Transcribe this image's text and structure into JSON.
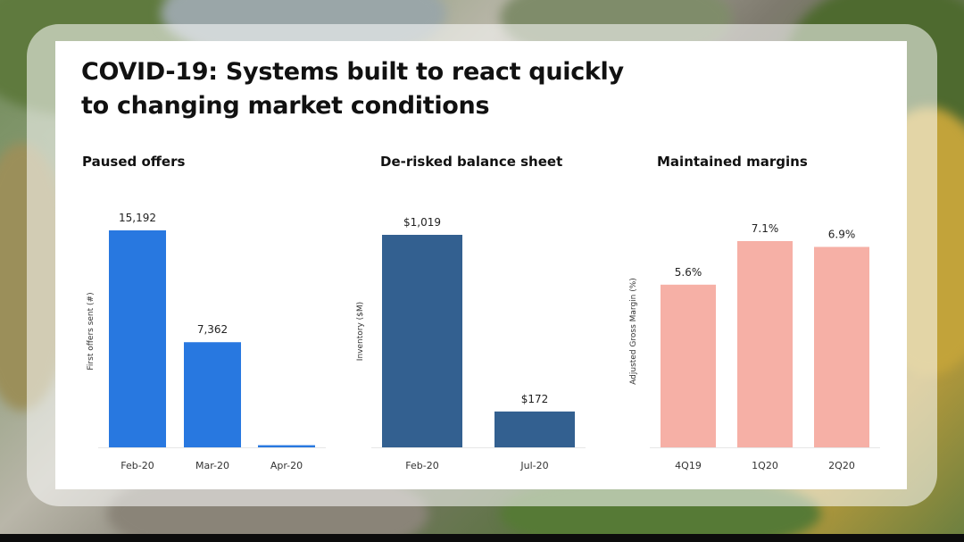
{
  "slide": {
    "title": "COVID-19: Systems built to react quickly\nto changing market conditions"
  },
  "chart_data": [
    {
      "type": "bar",
      "title": "Paused offers",
      "ylabel": "First offers sent (#)",
      "categories": [
        "Feb-20",
        "Mar-20",
        "Apr-20"
      ],
      "values": [
        15192,
        7362,
        150
      ],
      "data_labels": [
        "15,192",
        "7,362",
        ""
      ],
      "ylim": [
        0,
        15192
      ],
      "color": "#2878e0",
      "grid": false
    },
    {
      "type": "bar",
      "title": "De-risked balance sheet",
      "ylabel": "Inventory ($M)",
      "categories": [
        "Feb-20",
        "Jul-20"
      ],
      "values": [
        1019,
        172
      ],
      "data_labels": [
        "$1,019",
        "$172"
      ],
      "ylim": [
        0,
        1019
      ],
      "color": "#336090",
      "grid": false
    },
    {
      "type": "bar",
      "title": "Maintained margins",
      "ylabel": "Adjusted Gross Margin (%)",
      "categories": [
        "4Q19",
        "1Q20",
        "2Q20"
      ],
      "values": [
        5.6,
        7.1,
        6.9
      ],
      "data_labels": [
        "5.6%",
        "7.1%",
        "6.9%"
      ],
      "ylim": [
        0,
        7.1
      ],
      "color": "#f6b0a6",
      "grid": false
    }
  ]
}
